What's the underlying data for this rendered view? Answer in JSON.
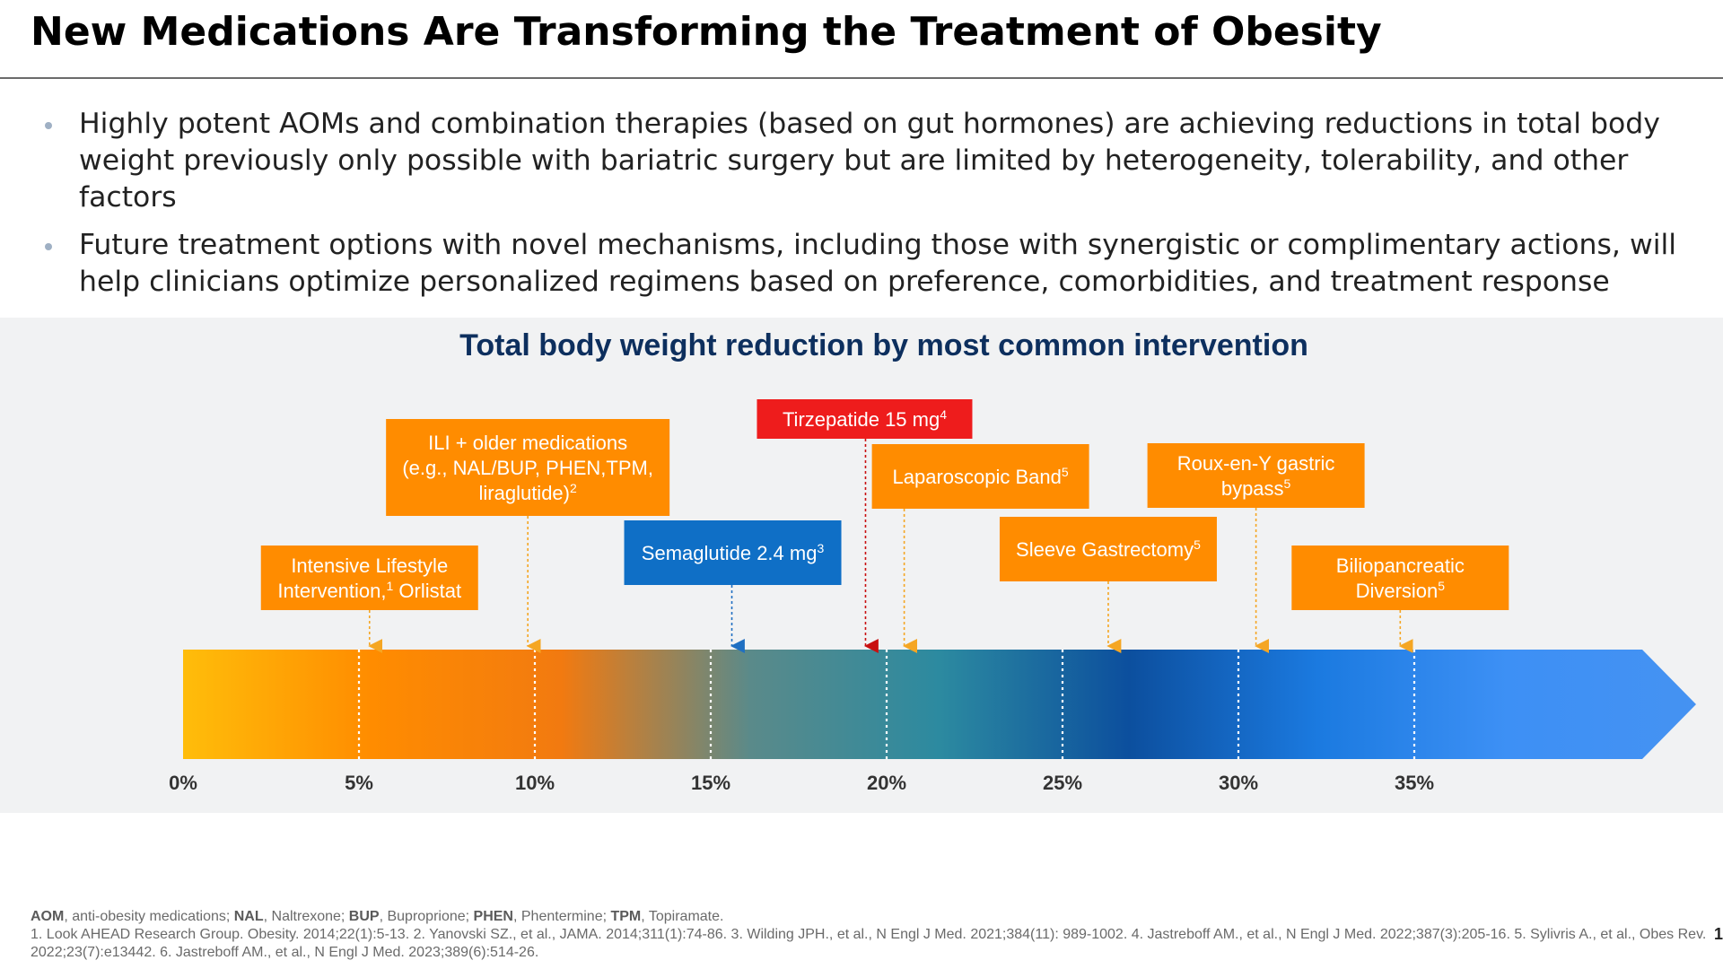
{
  "slide": {
    "title": "New Medications Are Transforming the Treatment of Obesity",
    "bullets": [
      "Highly potent AOMs and combination therapies (based on gut hormones) are achieving reductions in total body weight previously only possible with bariatric surgery but are limited by heterogeneity, tolerability, and other factors",
      "Future treatment options with novel mechanisms, including those with synergistic or complimentary actions, will help clinicians optimize personalized regimens based on preference, comorbidities, and treatment response"
    ],
    "footnotes": {
      "abbreviations": [
        {
          "term": "AOM",
          "definition": ", anti-obesity medications; "
        },
        {
          "term": "NAL",
          "definition": ", Naltrexone; "
        },
        {
          "term": "BUP",
          "definition": ", Buproprione; "
        },
        {
          "term": "PHEN",
          "definition": ", Phentermine; "
        },
        {
          "term": "TPM",
          "definition": ", Topiramate."
        }
      ],
      "references": "1. Look AHEAD Research Group. Obesity. 2014;22(1):5-13. 2. Yanovski SZ., et al., JAMA. 2014;311(1):74-86. 3. Wilding JPH., et al., N Engl J Med. 2021;384(11): 989-1002. 4. Jastreboff AM., et al., N Engl J Med. 2022;387(3):205-16. 5. Sylivris A., et al., Obes Rev. 2022;23(7):e13442. 6. Jastreboff AM., et al., N Engl J Med. 2023;389(6):514-26."
    },
    "page_number": "1"
  },
  "colors": {
    "orange": "#ff8c00",
    "blue": "#0f6fc6",
    "red": "#ee1c1c",
    "title_navy": "#0d2f5e",
    "leader_orange": "#f5a623",
    "leader_blue": "#1f6fc2",
    "leader_red": "#c81010"
  },
  "chart_data": {
    "type": "annotated-scale",
    "title": "Total body weight reduction by most common intervention",
    "xlabel": "",
    "ylabel": "",
    "xlim": [
      0,
      40
    ],
    "ticks": [
      0,
      5,
      10,
      15,
      20,
      25,
      30,
      35
    ],
    "tick_labels": [
      "0%",
      "5%",
      "10%",
      "15%",
      "20%",
      "25%",
      "30%",
      "35%"
    ],
    "gridlines": [
      5,
      10,
      15,
      20,
      25,
      30,
      35
    ],
    "gradient": [
      "#ffbd0a",
      "#ff8c00",
      "#f27a10",
      "#5a8a8a",
      "#2c8aa0",
      "#0c4f9e",
      "#1b7ae0",
      "#3d90f5",
      "#4592f2"
    ],
    "interventions": [
      {
        "label_lines": [
          "Intensive Lifestyle",
          "Intervention,"
        ],
        "sup_after_line": {
          "1": "1"
        },
        "extra_after_sup": " Orlistat",
        "value": 5.3,
        "color": "orange",
        "row": 3
      },
      {
        "label_lines": [
          "ILI + older medications",
          "(e.g., NAL/BUP, PHEN,TPM,",
          "liraglutide)"
        ],
        "sup": "2",
        "value": 9.8,
        "color": "orange",
        "row": 1
      },
      {
        "label_lines": [
          "Semaglutide 2.4 mg"
        ],
        "sup": "3",
        "value": 15.6,
        "color": "blue",
        "row": 2
      },
      {
        "label_lines": [
          "Tirzepatide 15 mg"
        ],
        "sup": "4",
        "value": 19.4,
        "color": "red",
        "row": 0
      },
      {
        "label_lines": [
          "Laparoscopic Band"
        ],
        "sup": "5",
        "value": 20.5,
        "color": "orange",
        "row": 1
      },
      {
        "label_lines": [
          "Sleeve Gastrectomy"
        ],
        "sup": "5",
        "value": 26.3,
        "color": "orange",
        "row": 2
      },
      {
        "label_lines": [
          "Roux-en-Y gastric",
          "bypass"
        ],
        "sup": "5",
        "value": 30.5,
        "color": "orange",
        "row": 1
      },
      {
        "label_lines": [
          "Biliopancreatic",
          "Diversion"
        ],
        "sup": "5",
        "value": 34.6,
        "color": "orange",
        "row": 3
      }
    ]
  }
}
